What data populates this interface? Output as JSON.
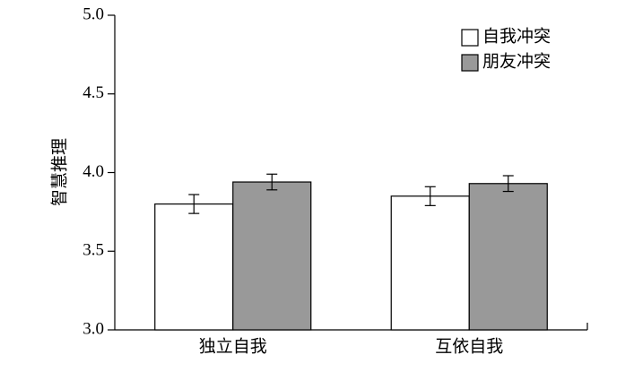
{
  "chart_data": {
    "type": "bar",
    "y_label": "智慧推理",
    "categories": [
      "独立自我",
      "互依自我"
    ],
    "series": [
      {
        "name": "自我冲突",
        "color": "#ffffff",
        "values": [
          3.8,
          3.85
        ],
        "errors": [
          0.06,
          0.06
        ]
      },
      {
        "name": "朋友冲突",
        "color": "#999999",
        "values": [
          3.94,
          3.93
        ],
        "errors": [
          0.05,
          0.05
        ]
      }
    ],
    "ylim": [
      3.0,
      5.0
    ],
    "yticks": [
      {
        "value": 3.0,
        "label": "3.0"
      },
      3.5,
      {
        "value": 4.0,
        "label": "4.0"
      },
      4.5,
      {
        "value": 5.0,
        "label": "5.0"
      }
    ],
    "grid": false,
    "legend": "upper-right"
  }
}
